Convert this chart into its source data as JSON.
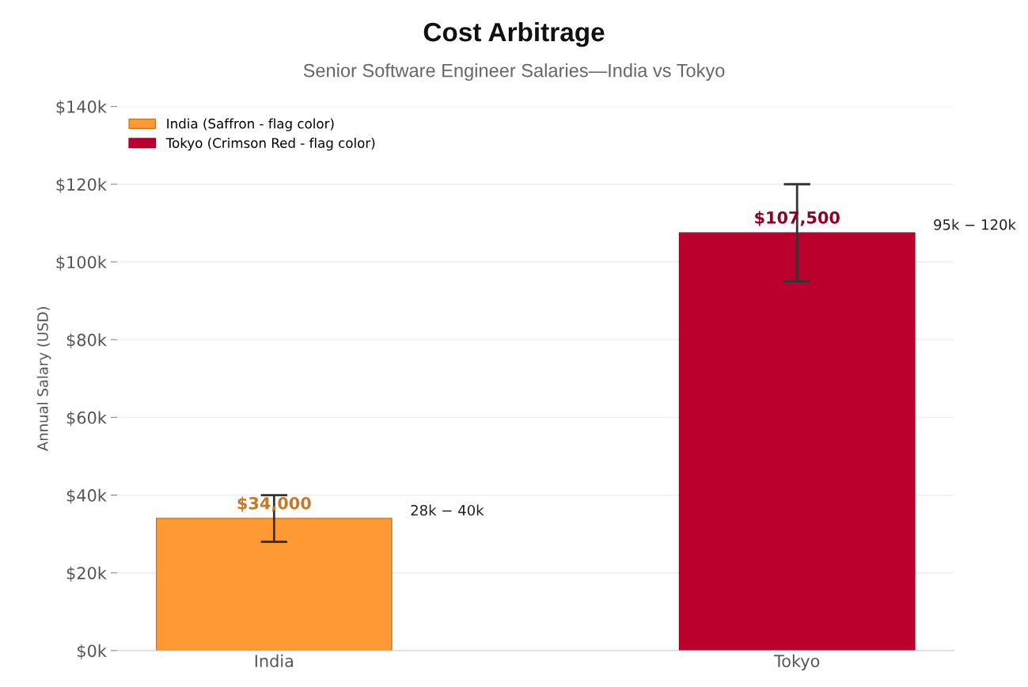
{
  "chart_data": {
    "type": "bar",
    "title": "Cost Arbitrage",
    "subtitle": "Senior Software Engineer Salaries—India vs Tokyo",
    "ylabel": "Annual Salary (USD)",
    "categories": [
      "India",
      "Tokyo"
    ],
    "series": [
      {
        "name": "India (Saffron - flag color)",
        "color": "#ff9933",
        "values": [
          34000,
          null
        ],
        "errors": [
          [
            28000,
            40000
          ],
          null
        ],
        "value_labels": [
          "$34,000",
          null
        ]
      },
      {
        "name": "Tokyo (Crimson Red - flag color)",
        "color": "#bc002d",
        "values": [
          null,
          107500
        ],
        "errors": [
          null,
          [
            95000,
            120000
          ]
        ],
        "value_labels": [
          null,
          "$107,500"
        ]
      }
    ],
    "annotations": [
      "28k − 40k",
      "95k − 120k"
    ],
    "ylim": [
      0,
      140000
    ],
    "yticks": [
      {
        "value": 0,
        "label": "$0k"
      },
      {
        "value": 20000,
        "label": "$20k"
      },
      {
        "value": 40000,
        "label": "$40k"
      },
      {
        "value": 60000,
        "label": "$60k"
      },
      {
        "value": 80000,
        "label": "$80k"
      },
      {
        "value": 100000,
        "label": "$100k"
      },
      {
        "value": 120000,
        "label": "$120k"
      },
      {
        "value": 140000,
        "label": "$140k"
      }
    ],
    "grid": "y",
    "legend": "top left"
  }
}
